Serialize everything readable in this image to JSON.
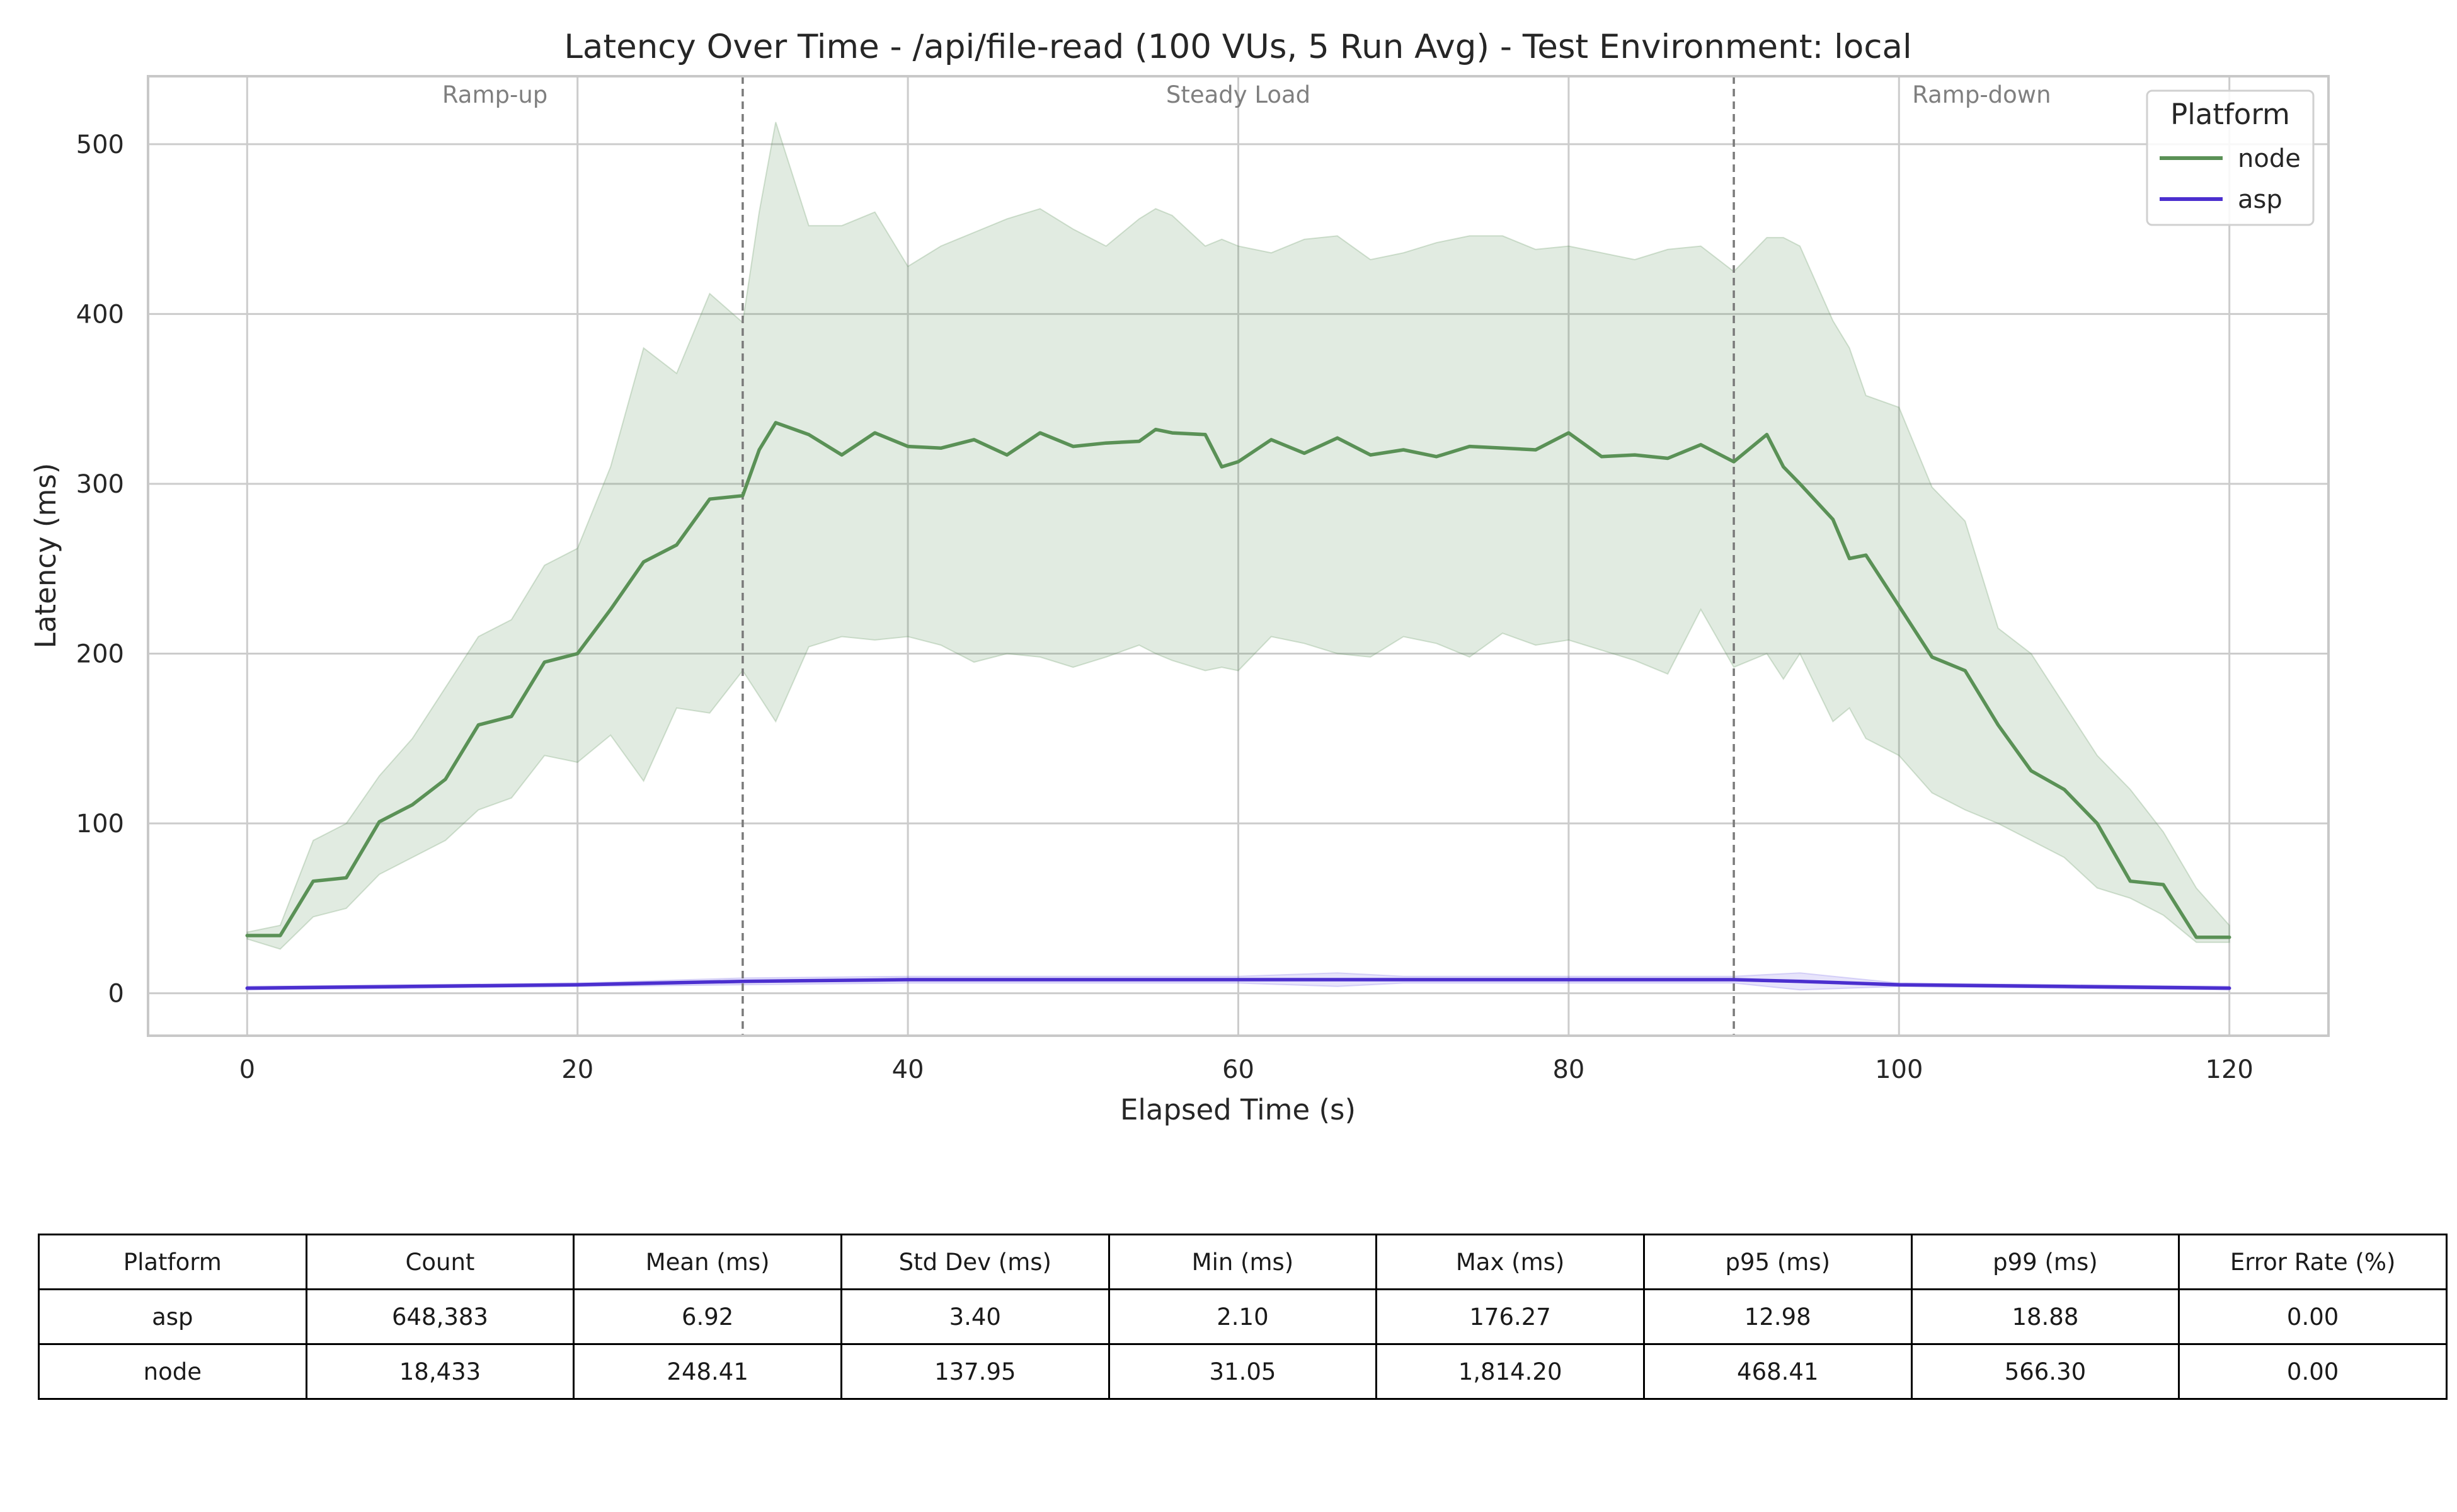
{
  "chart_data": {
    "type": "line",
    "title": "Latency Over Time - /api/file-read (100 VUs, 5 Run Avg) - Test Environment: local",
    "xlabel": "Elapsed Time (s)",
    "ylabel": "Latency (ms)",
    "xlim": [
      -6,
      126
    ],
    "ylim": [
      -25,
      540
    ],
    "xticks": [
      0,
      20,
      40,
      60,
      80,
      100,
      120
    ],
    "yticks": [
      0,
      100,
      200,
      300,
      400,
      500
    ],
    "grid": true,
    "legend": {
      "title": "Platform",
      "position": "top-right",
      "entries": [
        "node",
        "asp"
      ]
    },
    "phases": [
      {
        "label": "Ramp-up",
        "center": 15
      },
      {
        "label": "Steady Load",
        "center": 60
      },
      {
        "label": "Ramp-down",
        "center": 105
      }
    ],
    "phase_boundaries": [
      30,
      90
    ],
    "series": [
      {
        "name": "node",
        "color": "#5a9156",
        "band_color": "#5a9156",
        "x": [
          0,
          2,
          4,
          6,
          8,
          10,
          12,
          14,
          16,
          18,
          20,
          22,
          24,
          26,
          28,
          30,
          31,
          32,
          34,
          36,
          38,
          40,
          42,
          44,
          46,
          48,
          50,
          52,
          54,
          55,
          56,
          58,
          59,
          60,
          62,
          64,
          66,
          68,
          70,
          72,
          74,
          76,
          78,
          80,
          82,
          84,
          86,
          88,
          90,
          92,
          93,
          94,
          96,
          97,
          98,
          100,
          102,
          104,
          106,
          108,
          110,
          112,
          114,
          116,
          118,
          120
        ],
        "y": [
          34,
          34,
          66,
          68,
          101,
          111,
          126,
          158,
          163,
          195,
          200,
          226,
          254,
          264,
          291,
          293,
          320,
          336,
          329,
          317,
          330,
          322,
          321,
          326,
          317,
          330,
          322,
          324,
          325,
          332,
          330,
          329,
          310,
          313,
          326,
          318,
          327,
          317,
          320,
          316,
          322,
          321,
          320,
          330,
          316,
          317,
          315,
          323,
          313,
          329,
          310,
          300,
          279,
          256,
          258,
          228,
          198,
          190,
          158,
          131,
          120,
          100,
          66,
          64,
          33,
          33
        ],
        "band_upper": [
          36,
          40,
          90,
          100,
          128,
          150,
          180,
          210,
          220,
          252,
          262,
          310,
          380,
          365,
          412,
          395,
          460,
          513,
          452,
          452,
          460,
          428,
          440,
          448,
          456,
          462,
          450,
          440,
          456,
          462,
          458,
          440,
          444,
          440,
          436,
          444,
          446,
          432,
          436,
          442,
          446,
          446,
          438,
          440,
          436,
          432,
          438,
          440,
          425,
          445,
          445,
          440,
          396,
          380,
          352,
          345,
          298,
          278,
          215,
          200,
          170,
          140,
          120,
          95,
          62,
          40
        ],
        "band_lower": [
          32,
          26,
          45,
          50,
          70,
          80,
          90,
          108,
          115,
          140,
          136,
          152,
          125,
          168,
          165,
          190,
          175,
          160,
          204,
          210,
          208,
          210,
          205,
          195,
          200,
          198,
          192,
          198,
          205,
          200,
          196,
          190,
          192,
          190,
          210,
          206,
          200,
          198,
          210,
          206,
          198,
          212,
          205,
          208,
          202,
          196,
          188,
          226,
          192,
          200,
          185,
          200,
          160,
          168,
          150,
          140,
          118,
          108,
          100,
          90,
          80,
          62,
          56,
          46,
          30,
          30
        ]
      },
      {
        "name": "asp",
        "color": "#4b2fcf",
        "band_color": "#7c6ce8",
        "x": [
          0,
          10,
          20,
          30,
          40,
          50,
          60,
          66,
          70,
          80,
          90,
          94,
          100,
          110,
          120
        ],
        "y": [
          3,
          4,
          5,
          7,
          8,
          8,
          8,
          8,
          8,
          8,
          8,
          7,
          5,
          4,
          3
        ],
        "band_upper": [
          4,
          5,
          6,
          9,
          10,
          10,
          10,
          12,
          10,
          10,
          10,
          12,
          6,
          5,
          4
        ],
        "band_lower": [
          2,
          3,
          4,
          5,
          6,
          6,
          6,
          4,
          6,
          6,
          6,
          2,
          4,
          3,
          2
        ]
      }
    ]
  },
  "table": {
    "headers": [
      "Platform",
      "Count",
      "Mean (ms)",
      "Std Dev (ms)",
      "Min (ms)",
      "Max (ms)",
      "p95 (ms)",
      "p99 (ms)",
      "Error Rate (%)"
    ],
    "rows": [
      [
        "asp",
        "648,383",
        "6.92",
        "3.40",
        "2.10",
        "176.27",
        "12.98",
        "18.88",
        "0.00"
      ],
      [
        "node",
        "18,433",
        "248.41",
        "137.95",
        "31.05",
        "1,814.20",
        "468.41",
        "566.30",
        "0.00"
      ]
    ]
  }
}
